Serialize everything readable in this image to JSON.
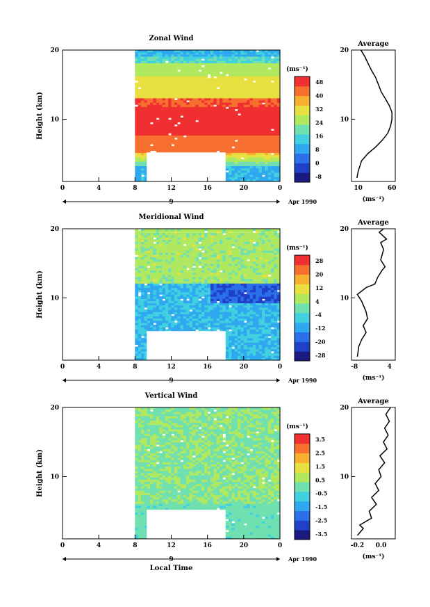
{
  "chart_data": [
    {
      "type": "heatmap",
      "title": "Zonal Wind",
      "xlabel": "",
      "ylabel": "Height (km)",
      "xlim": [
        0,
        24
      ],
      "ylim": [
        1,
        20
      ],
      "xticks": [
        "0",
        "4",
        "8",
        "12",
        "16",
        "20",
        "0"
      ],
      "yticks": [
        "20",
        "10"
      ],
      "day_label": "9",
      "date_label": "Apr 1990",
      "units_label": "(ms⁻¹)",
      "colorbar": {
        "ticks": [
          "48",
          "40",
          "32",
          "24",
          "16",
          "8",
          "0",
          "-8"
        ],
        "min": -12,
        "max": 52
      },
      "profile": {
        "title": "Average",
        "xticks": [
          "10",
          "60"
        ],
        "xlabel": "(ms⁻¹)",
        "yticks": [
          "20",
          "10"
        ],
        "xlim": [
          0,
          65
        ],
        "points": [
          [
            8,
            1.5
          ],
          [
            10,
            2.5
          ],
          [
            15,
            4
          ],
          [
            24,
            5
          ],
          [
            36,
            6
          ],
          [
            46,
            7
          ],
          [
            54,
            8
          ],
          [
            58,
            9
          ],
          [
            60,
            10
          ],
          [
            60,
            11
          ],
          [
            56,
            12
          ],
          [
            50,
            13
          ],
          [
            44,
            14
          ],
          [
            40,
            15
          ],
          [
            36,
            16
          ],
          [
            30,
            17
          ],
          [
            25,
            18
          ],
          [
            20,
            19
          ],
          [
            14,
            20
          ]
        ]
      }
    },
    {
      "type": "heatmap",
      "title": "Meridional Wind",
      "xlabel": "",
      "ylabel": "Height (km)",
      "xlim": [
        0,
        24
      ],
      "ylim": [
        1,
        20
      ],
      "xticks": [
        "0",
        "4",
        "8",
        "12",
        "16",
        "20",
        "0"
      ],
      "yticks": [
        "20",
        "10"
      ],
      "day_label": "9",
      "date_label": "Apr 1990",
      "units_label": "(ms⁻¹)",
      "colorbar": {
        "ticks": [
          "28",
          "20",
          "12",
          "4",
          "-4",
          "-12",
          "-20",
          "-28"
        ],
        "min": -32,
        "max": 32
      },
      "profile": {
        "title": "Average",
        "xticks": [
          "-8",
          "4"
        ],
        "xlabel": "(ms⁻¹)",
        "yticks": [
          "20",
          "10"
        ],
        "xlim": [
          -9,
          6
        ],
        "points": [
          [
            -7,
            1.5
          ],
          [
            -6.5,
            3
          ],
          [
            -5.5,
            4
          ],
          [
            -4,
            5
          ],
          [
            -5,
            6
          ],
          [
            -3.5,
            7
          ],
          [
            -4,
            8
          ],
          [
            -5.5,
            9.5
          ],
          [
            -7,
            10.5
          ],
          [
            -4,
            11.5
          ],
          [
            -1,
            12
          ],
          [
            0,
            13
          ],
          [
            1.5,
            14
          ],
          [
            2.5,
            14.5
          ],
          [
            1,
            15.5
          ],
          [
            2,
            17
          ],
          [
            1,
            18
          ],
          [
            3,
            18.5
          ],
          [
            0.5,
            19.5
          ],
          [
            2,
            20
          ]
        ]
      }
    },
    {
      "type": "heatmap",
      "title": "Vertical Wind",
      "xlabel": "Local Time",
      "ylabel": "Height (km)",
      "xlim": [
        0,
        24
      ],
      "ylim": [
        1,
        20
      ],
      "xticks": [
        "0",
        "4",
        "8",
        "12",
        "16",
        "20",
        "0"
      ],
      "yticks": [
        "20",
        "10"
      ],
      "day_label": "9",
      "date_label": "Apr 1990",
      "units_label": "(ms⁻¹)",
      "colorbar": {
        "ticks": [
          "3.5",
          "2.5",
          "1.5",
          "0.5",
          "-0.5",
          "-1.5",
          "-2.5",
          "-3.5"
        ],
        "min": -4,
        "max": 4
      },
      "profile": {
        "title": "Average",
        "xticks": [
          "-0.2",
          "0.0"
        ],
        "xlabel": "(ms⁻¹)",
        "yticks": [
          "20",
          "10"
        ],
        "xlim": [
          -0.25,
          0.12
        ],
        "points": [
          [
            -0.2,
            1.5
          ],
          [
            -0.15,
            2.5
          ],
          [
            -0.18,
            3
          ],
          [
            -0.08,
            4
          ],
          [
            -0.1,
            5
          ],
          [
            -0.04,
            6
          ],
          [
            -0.08,
            7
          ],
          [
            -0.02,
            8
          ],
          [
            -0.05,
            9
          ],
          [
            0,
            10
          ],
          [
            -0.02,
            11
          ],
          [
            0.03,
            12
          ],
          [
            -0.01,
            13
          ],
          [
            0.05,
            14
          ],
          [
            0.02,
            15
          ],
          [
            0.06,
            16
          ],
          [
            0.03,
            17
          ],
          [
            0.07,
            18
          ],
          [
            0.04,
            19
          ],
          [
            0.08,
            20
          ]
        ]
      }
    }
  ],
  "colors": {
    "palette": [
      "#1a1a80",
      "#2040c8",
      "#2a70e8",
      "#30a8f0",
      "#40d0e0",
      "#70e0b0",
      "#b0e860",
      "#e8e040",
      "#f8b030",
      "#f87030",
      "#f03030"
    ]
  }
}
